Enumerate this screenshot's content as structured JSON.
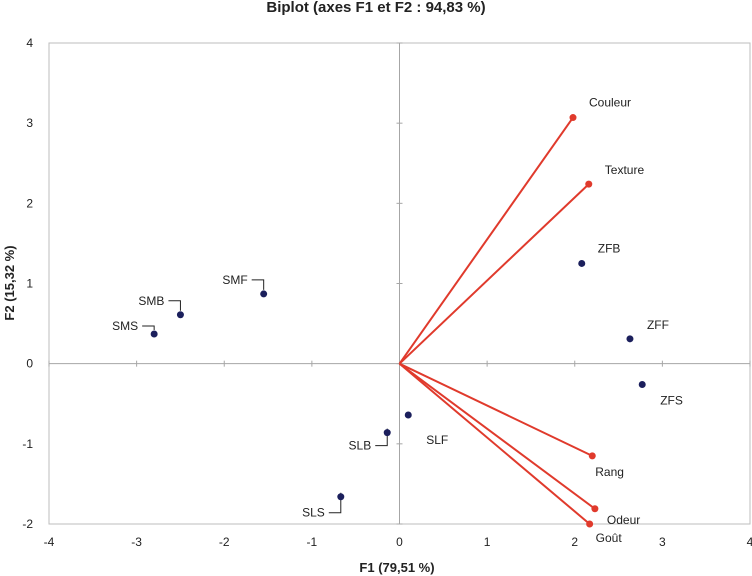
{
  "chart_data": {
    "type": "scatter",
    "title": "Biplot (axes F1 et F2 : 94,83 %)",
    "xlabel": "F1 (79,51 %)",
    "ylabel": "F2 (15,32 %)",
    "xlim": [
      -4,
      4
    ],
    "ylim": [
      -2,
      4
    ],
    "xticks": [
      "-4",
      "-3",
      "-2",
      "-1",
      "0",
      "1",
      "2",
      "3",
      "4"
    ],
    "yticks": [
      "-2",
      "-1",
      "0",
      "1",
      "2",
      "3",
      "4"
    ],
    "observations": {
      "color": "#1b1f5c",
      "points": [
        {
          "name": "SMF",
          "x": -1.55,
          "y": 0.87
        },
        {
          "name": "SMB",
          "x": -2.5,
          "y": 0.61
        },
        {
          "name": "SMS",
          "x": -2.8,
          "y": 0.37
        },
        {
          "name": "SLF",
          "x": 0.1,
          "y": -0.64
        },
        {
          "name": "SLB",
          "x": -0.14,
          "y": -0.86
        },
        {
          "name": "SLS",
          "x": -0.67,
          "y": -1.66
        },
        {
          "name": "ZFB",
          "x": 2.08,
          "y": 1.25
        },
        {
          "name": "ZFF",
          "x": 2.63,
          "y": 0.31
        },
        {
          "name": "ZFS",
          "x": 2.77,
          "y": -0.26
        }
      ]
    },
    "variables": {
      "color": "#e03a2c",
      "vectors": [
        {
          "name": "Couleur",
          "x": 1.98,
          "y": 3.07
        },
        {
          "name": "Texture",
          "x": 2.16,
          "y": 2.24
        },
        {
          "name": "Rang",
          "x": 2.2,
          "y": -1.15
        },
        {
          "name": "Odeur",
          "x": 2.23,
          "y": -1.81
        },
        {
          "name": "Goût",
          "x": 2.17,
          "y": -2.0
        }
      ]
    }
  }
}
